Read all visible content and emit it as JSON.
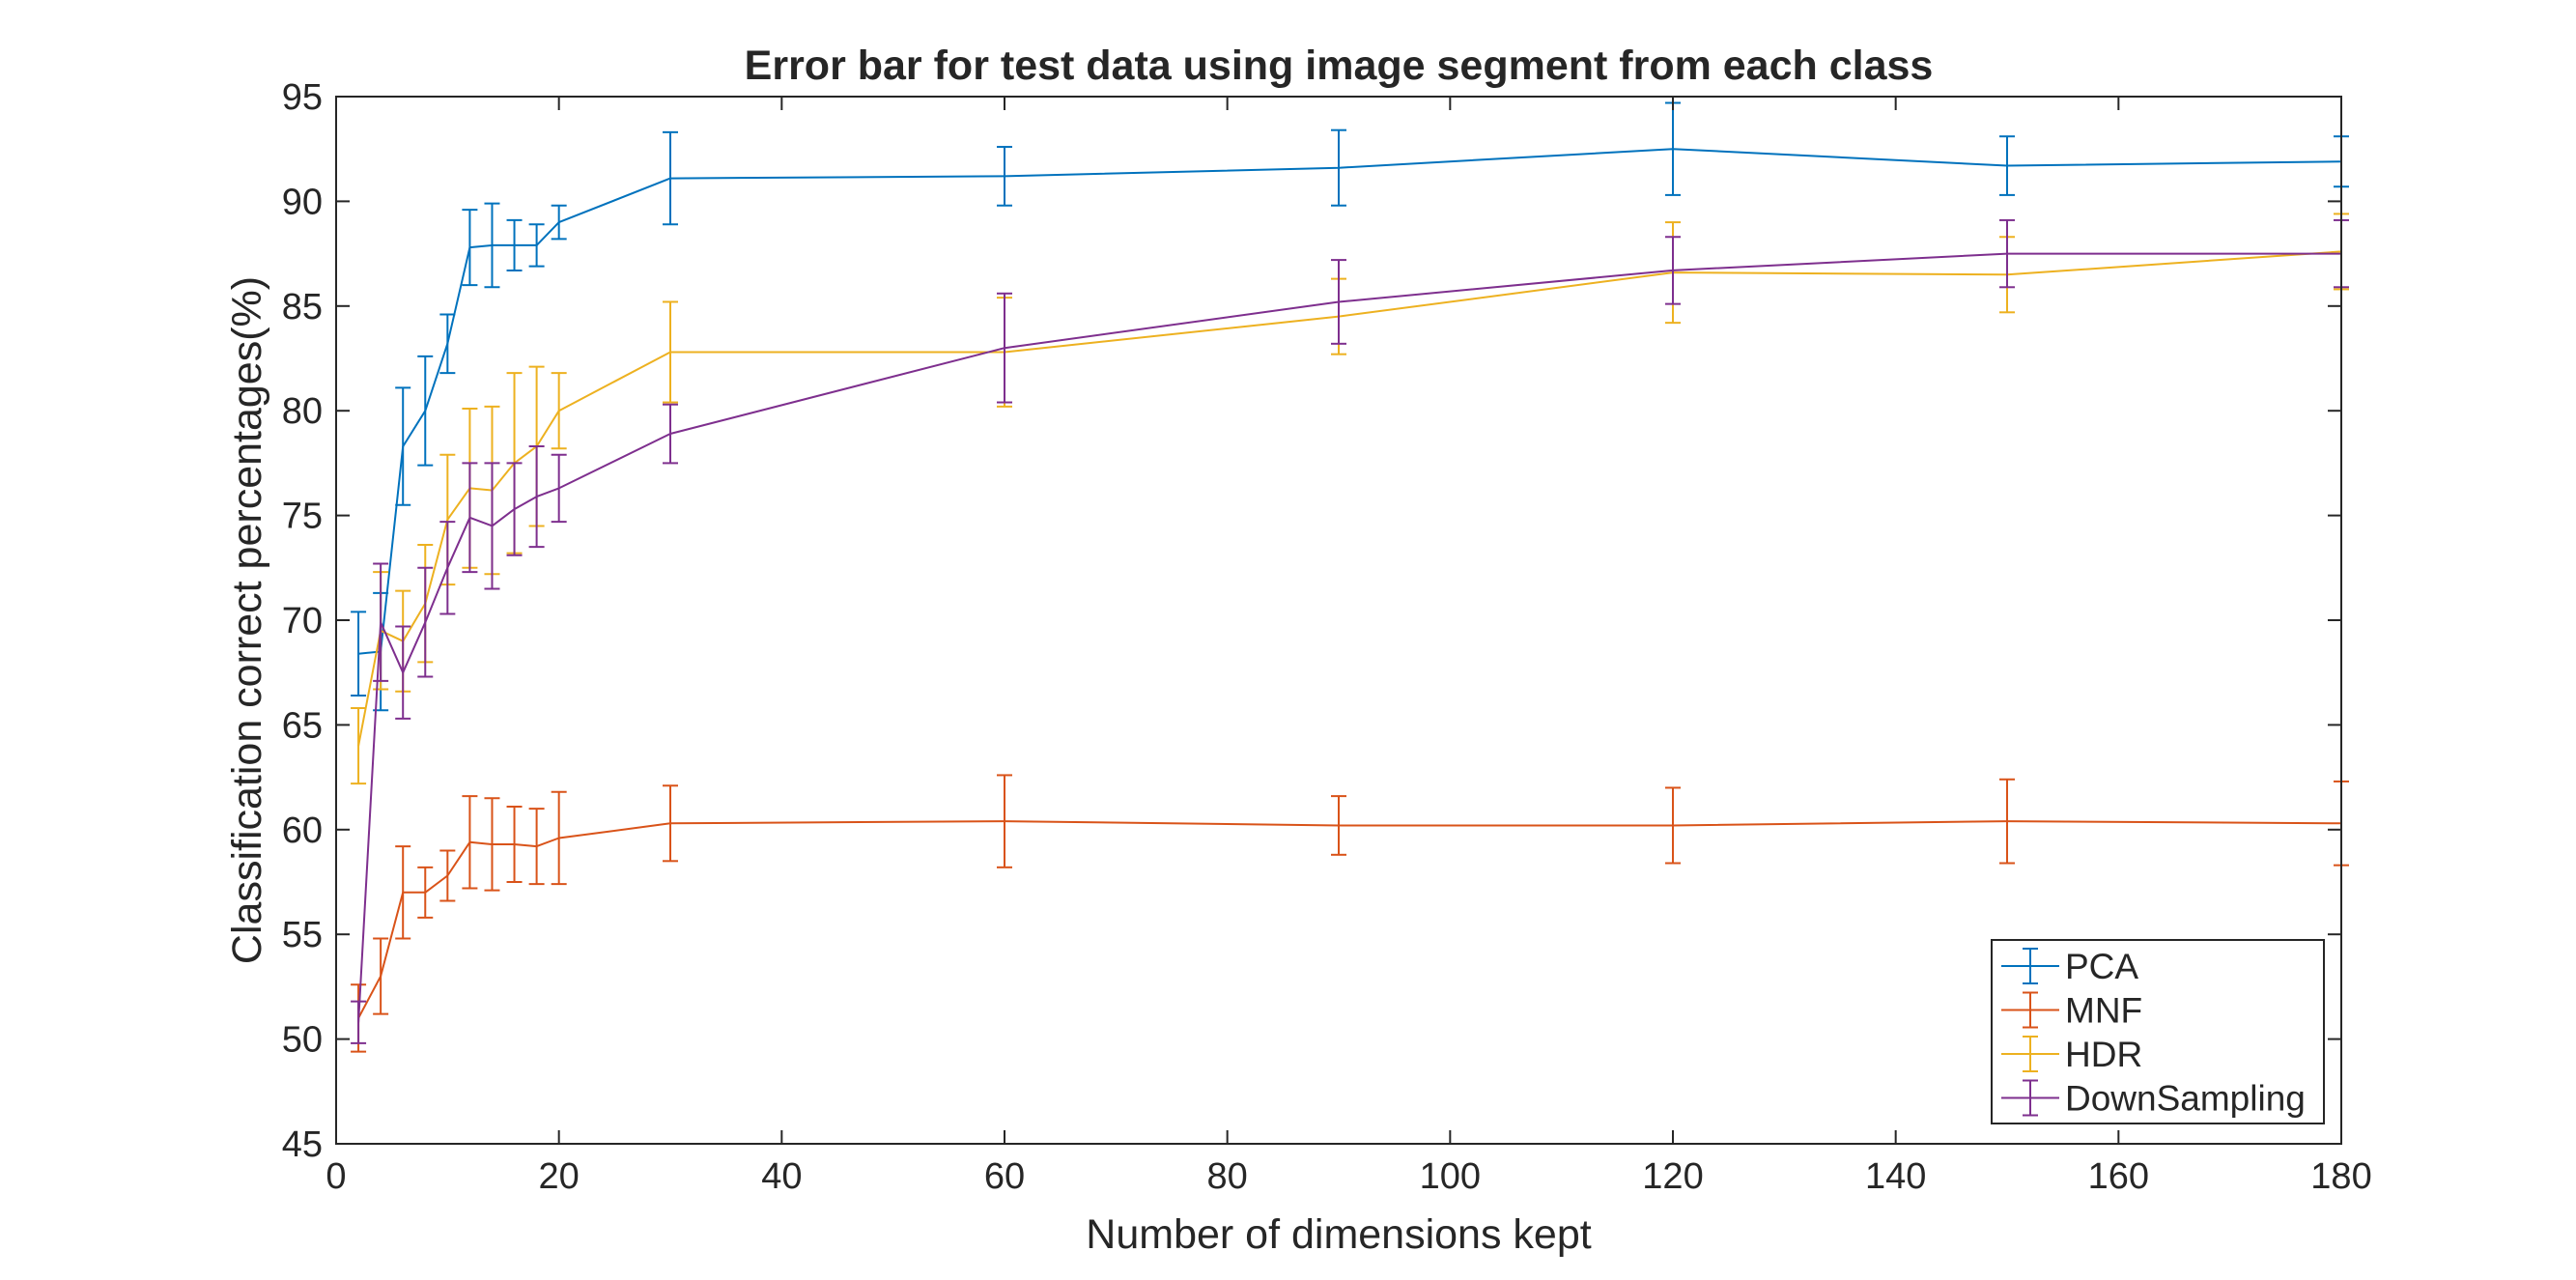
{
  "chart_data": {
    "type": "line",
    "title": "Error bar for test data using image segment from each class",
    "xlabel": "Number of dimensions kept",
    "ylabel": "Classification correct percentages(%)",
    "xlim": [
      0,
      180
    ],
    "ylim": [
      45,
      95
    ],
    "x_ticks": [
      0,
      20,
      40,
      60,
      80,
      100,
      120,
      140,
      160,
      180
    ],
    "y_ticks": [
      45,
      50,
      55,
      60,
      65,
      70,
      75,
      80,
      85,
      90,
      95
    ],
    "x": [
      2,
      4,
      6,
      8,
      10,
      12,
      14,
      16,
      18,
      20,
      30,
      60,
      90,
      120,
      150,
      180
    ],
    "grid": false,
    "error_bars": true,
    "legend_position": "bottom-right",
    "series": [
      {
        "name": "PCA",
        "color": "#0072BD",
        "values": [
          68.4,
          68.5,
          78.3,
          80.0,
          83.2,
          87.8,
          87.9,
          87.9,
          87.9,
          89.0,
          91.1,
          91.2,
          91.6,
          92.5,
          91.7,
          91.9
        ],
        "errors": [
          2.0,
          2.8,
          2.8,
          2.6,
          1.4,
          1.8,
          2.0,
          1.2,
          1.0,
          0.8,
          2.2,
          1.4,
          1.8,
          2.2,
          1.4,
          1.2
        ]
      },
      {
        "name": "MNF",
        "color": "#D95319",
        "values": [
          51.0,
          53.0,
          57.0,
          57.0,
          57.8,
          59.4,
          59.3,
          59.3,
          59.2,
          59.6,
          60.3,
          60.4,
          60.2,
          60.2,
          60.4,
          60.3
        ],
        "errors": [
          1.6,
          1.8,
          2.2,
          1.2,
          1.2,
          2.2,
          2.2,
          1.8,
          1.8,
          2.2,
          1.8,
          2.2,
          1.4,
          1.8,
          2.0,
          2.0
        ]
      },
      {
        "name": "HDR",
        "color": "#EDB120",
        "values": [
          64.0,
          69.5,
          69.0,
          70.8,
          74.8,
          76.3,
          76.2,
          77.5,
          78.3,
          80.0,
          82.8,
          82.8,
          84.5,
          86.6,
          86.5,
          87.6
        ],
        "errors": [
          1.8,
          2.8,
          2.4,
          2.8,
          3.1,
          3.8,
          4.0,
          4.3,
          3.8,
          1.8,
          2.4,
          2.6,
          1.8,
          2.4,
          1.8,
          1.8
        ]
      },
      {
        "name": "DownSampling",
        "color": "#7E2F8E",
        "values": [
          50.8,
          69.9,
          67.5,
          69.9,
          72.5,
          74.9,
          74.5,
          75.3,
          75.9,
          76.3,
          78.9,
          83.0,
          85.2,
          86.7,
          87.5,
          87.5
        ],
        "errors": [
          1.0,
          2.8,
          2.2,
          2.6,
          2.2,
          2.6,
          3.0,
          2.2,
          2.4,
          1.6,
          1.4,
          2.6,
          2.0,
          1.6,
          1.6,
          1.6
        ]
      }
    ]
  }
}
